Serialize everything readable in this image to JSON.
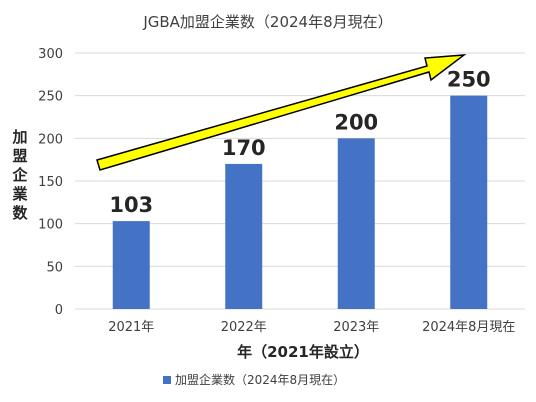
{
  "chart_data": {
    "type": "bar",
    "title": "JGBA加盟企業数（2024年8月現在）",
    "categories": [
      "2021年",
      "2022年",
      "2023年",
      "2024年8月現在"
    ],
    "series": [
      {
        "name": "加盟企業数（2024年8月現在）",
        "values": [
          103,
          170,
          200,
          250
        ],
        "color": "#4472C4"
      }
    ],
    "data_labels": [
      "103",
      "170",
      "200",
      "250"
    ],
    "xlabel": "年（2021年設立）",
    "ylabel": "加盟企業数",
    "ylim": [
      0,
      300
    ],
    "yticks": [
      0,
      50,
      100,
      150,
      200,
      250,
      300
    ],
    "grid": true,
    "legend_position": "bottom",
    "annotation": {
      "type": "trend-arrow",
      "color": "#FFFF00",
      "outline": "#000000"
    }
  }
}
